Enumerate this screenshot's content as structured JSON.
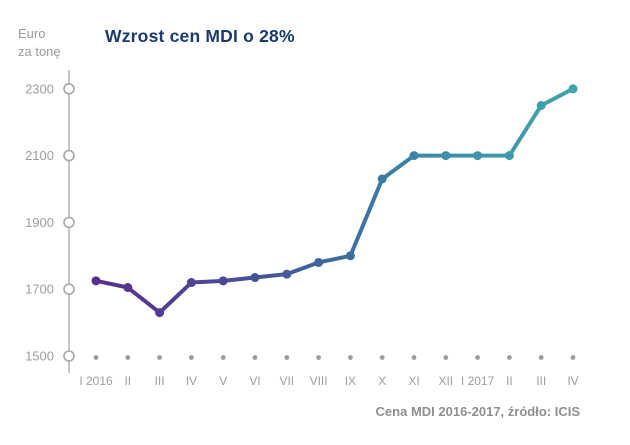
{
  "header": {
    "y_axis_unit_line1": "Euro",
    "y_axis_unit_line2": "za tonę"
  },
  "chart_data": {
    "type": "line",
    "title": "Wzrost cen MDI o 28%",
    "ylabel": "Euro za tonę",
    "xlabel": "",
    "categories": [
      "I 2016",
      "II",
      "III",
      "IV",
      "V",
      "VI",
      "VII",
      "VIII",
      "IX",
      "X",
      "XI",
      "XII",
      "I 2017",
      "II",
      "III",
      "IV"
    ],
    "values": [
      1725,
      1705,
      1630,
      1720,
      1725,
      1735,
      1745,
      1780,
      1800,
      2030,
      2100,
      2100,
      2100,
      2100,
      2250,
      2300
    ],
    "yticks": [
      1500,
      1700,
      1900,
      2100,
      2300
    ],
    "ylim": [
      1500,
      2300
    ],
    "grid": false,
    "legend": false,
    "series_name": "Cena MDI",
    "caption": "Cena MDI 2016-2017, źródło: ICIS",
    "line_gradient": [
      "#5c2d8a",
      "#4b4796",
      "#3e699e",
      "#3d93a7",
      "#3fa4ab"
    ]
  },
  "colors": {
    "title": "#1b3a70",
    "axis_line": "#b3b3b3",
    "tick_label": "#9e9e9e",
    "tick_circle_stroke": "#a8a8a8",
    "tick_circle_fill": "#ffffff",
    "category_dot": "#9c9c9c",
    "x_label": "#9e9e9e",
    "caption": "#8f8f8f",
    "background": "#ffffff"
  }
}
